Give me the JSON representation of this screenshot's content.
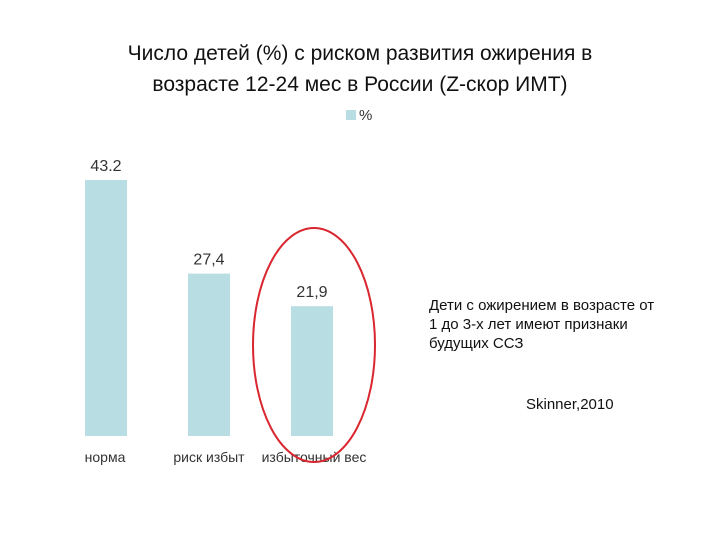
{
  "title_lines": [
    "Число детей  (%) с риском развития ожирения в",
    "возрасте 12-24 мес в России (Z-скор ИМТ)"
  ],
  "note_lines": [
    "Дети с ожирением в возрасте от",
    "1 до 3-х лет имеют признаки",
    "будущих ССЗ"
  ],
  "source": "Skinner,2010",
  "colors": {
    "bar": "#b8dde3",
    "highlight_ellipse": "#d9262f",
    "text": "#111111",
    "axis_text": "#333333"
  },
  "chart_data": {
    "type": "bar",
    "categories": [
      "норма",
      "риск избыт",
      "избыточный вес"
    ],
    "series": [
      {
        "name": "%",
        "values": [
          43.2,
          27.4,
          21.9
        ],
        "labels": [
          "43.2",
          "27,4",
          "21,9"
        ]
      }
    ],
    "title": "Число детей  (%) с риском развития ожирения в возрасте 12-24 мес в России (Z-скор ИМТ)",
    "legend": "top-center",
    "grid": false,
    "ylim": [
      0,
      43.2
    ],
    "highlighted_category": "избыточный вес"
  }
}
